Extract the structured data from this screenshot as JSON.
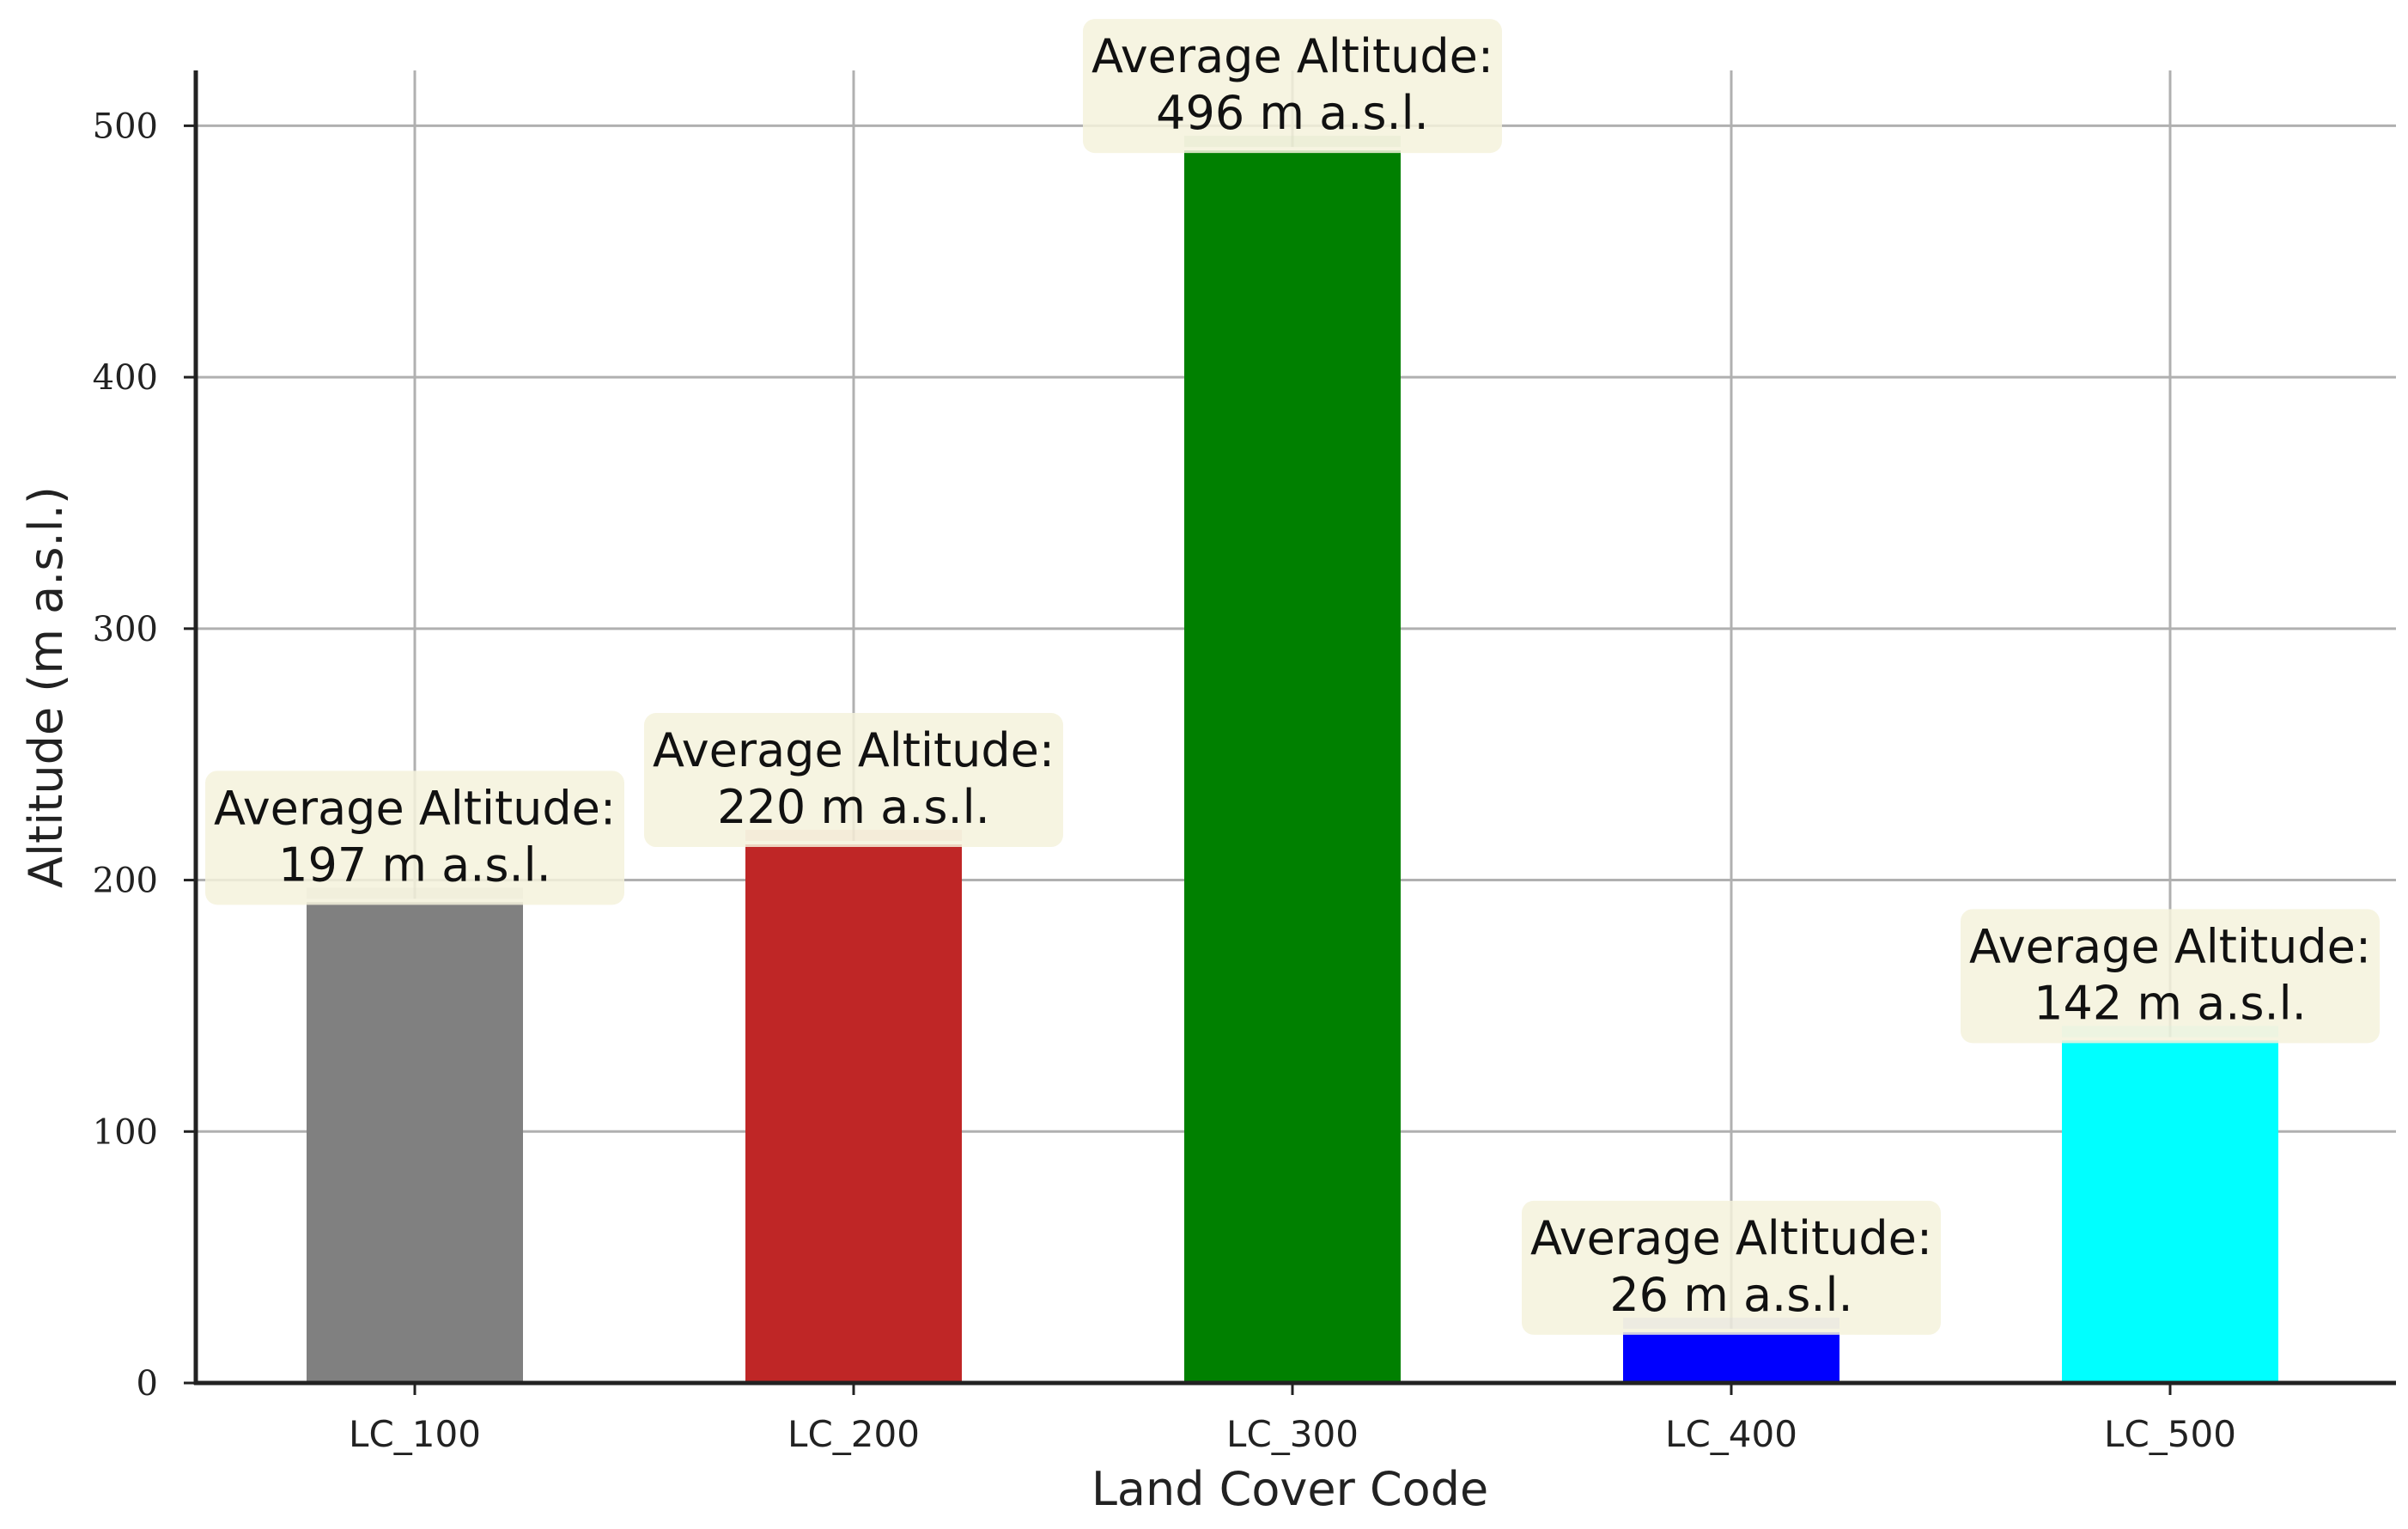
{
  "chart_data": {
    "type": "bar",
    "categories": [
      "LC_100",
      "LC_200",
      "LC_300",
      "LC_400",
      "LC_500"
    ],
    "values": [
      197,
      220,
      496,
      26,
      142
    ],
    "colors": [
      "#808080",
      "#bf2626",
      "#008000",
      "#0000ff",
      "#00ffff"
    ],
    "annotations": [
      {
        "line1": "Average Altitude:",
        "line2": "197 m a.s.l."
      },
      {
        "line1": "Average Altitude:",
        "line2": "220 m a.s.l."
      },
      {
        "line1": "Average Altitude:",
        "line2": "496 m a.s.l."
      },
      {
        "line1": "Average Altitude:",
        "line2": "26 m a.s.l."
      },
      {
        "line1": "Average Altitude:",
        "line2": "142 m a.s.l."
      }
    ],
    "xlabel": "Land Cover Code",
    "ylabel": "Altitude (m a.s.l.)",
    "ylim": [
      0,
      522
    ],
    "yticks": [
      0,
      100,
      200,
      300,
      400,
      500
    ],
    "ytick_labels": [
      "0",
      "100",
      "200",
      "300",
      "400",
      "500"
    ],
    "grid": true,
    "annotation_box_color": "#f5f2dc"
  }
}
